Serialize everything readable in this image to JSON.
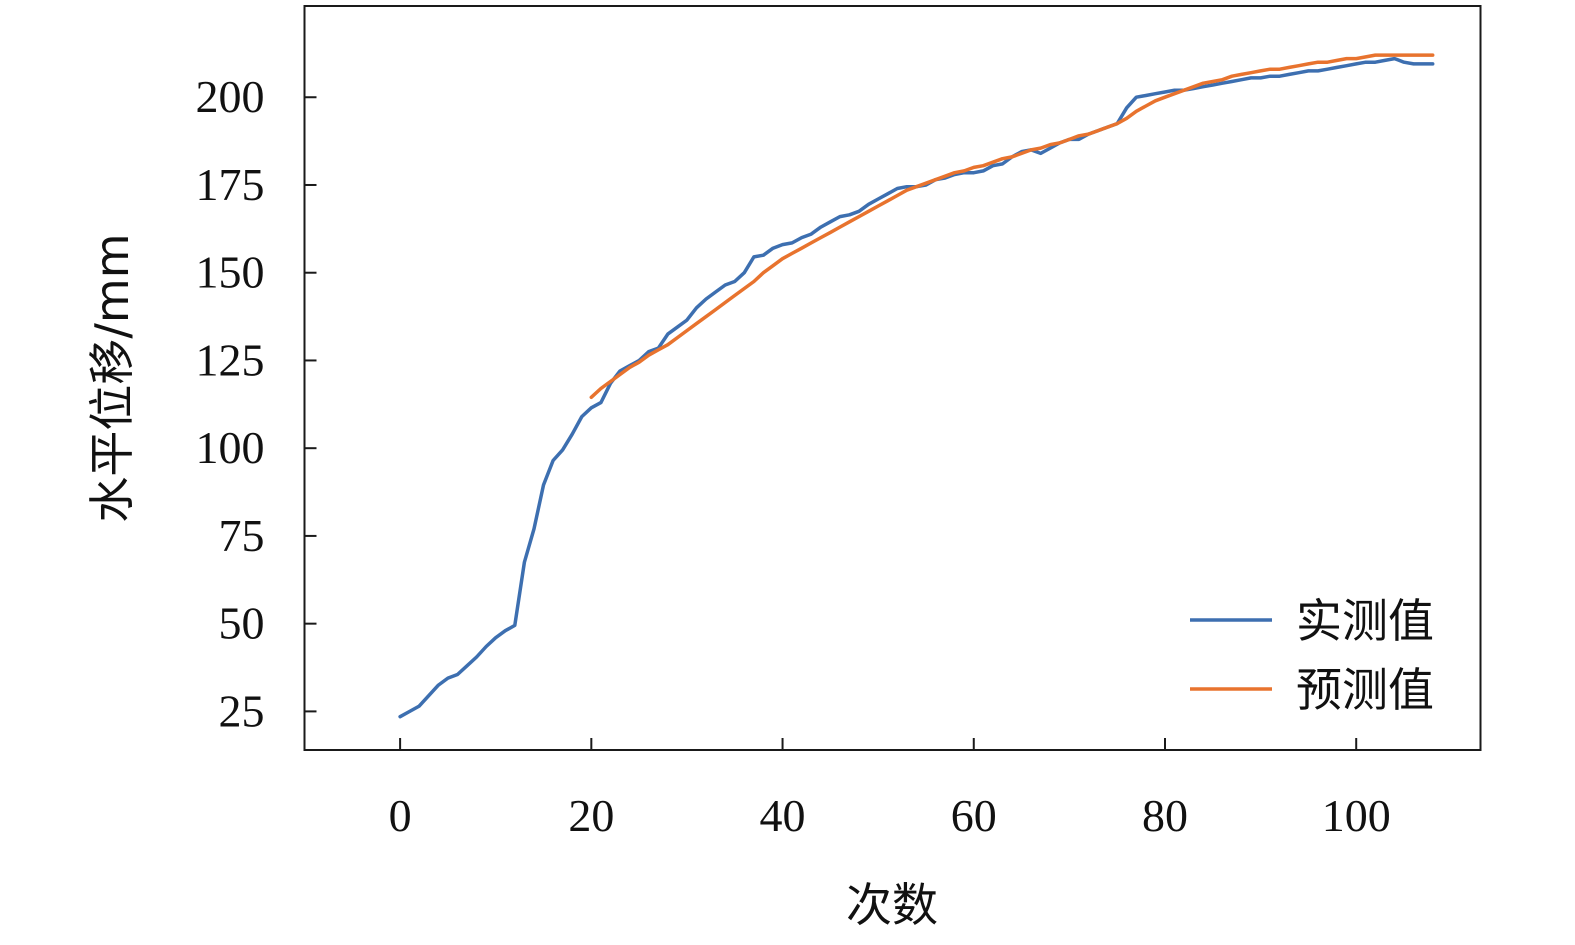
{
  "chart_data": {
    "type": "line",
    "xlabel": "次数",
    "ylabel": "水平位移/mm",
    "xlim": [
      -10,
      113
    ],
    "ylim": [
      14,
      226
    ],
    "xticks": [
      0,
      20,
      40,
      60,
      80,
      100
    ],
    "yticks": [
      25,
      50,
      75,
      100,
      125,
      150,
      175,
      200
    ],
    "grid": false,
    "legend_position": "bottom-right",
    "series": [
      {
        "name": "实测值",
        "color": "#3d6fb0",
        "x": [
          0,
          1,
          2,
          3,
          4,
          5,
          6,
          7,
          8,
          9,
          10,
          11,
          12,
          13,
          14,
          15,
          16,
          17,
          18,
          19,
          20,
          21,
          22,
          23,
          24,
          25,
          26,
          27,
          28,
          29,
          30,
          31,
          32,
          33,
          34,
          35,
          36,
          37,
          38,
          39,
          40,
          41,
          42,
          43,
          44,
          45,
          46,
          47,
          48,
          49,
          50,
          51,
          52,
          53,
          54,
          55,
          56,
          57,
          58,
          59,
          60,
          61,
          62,
          63,
          64,
          65,
          66,
          67,
          68,
          69,
          70,
          71,
          72,
          73,
          74,
          75,
          76,
          77,
          78,
          79,
          80,
          81,
          82,
          83,
          84,
          85,
          86,
          87,
          88,
          89,
          90,
          91,
          92,
          93,
          94,
          95,
          96,
          97,
          98,
          99,
          100,
          101,
          102,
          103,
          104,
          105,
          106,
          107,
          108
        ],
        "y": [
          23.5,
          25,
          26.5,
          29.5,
          32.5,
          34.5,
          35.5,
          38,
          40.5,
          43.5,
          46,
          48,
          49.5,
          67.5,
          77,
          89.5,
          96.5,
          99.5,
          104,
          109,
          111.5,
          113,
          118.5,
          122,
          123.5,
          125,
          127.5,
          128.5,
          132.5,
          134.5,
          136.5,
          140,
          142.5,
          144.5,
          146.5,
          147.5,
          150,
          154.5,
          155,
          157,
          158,
          158.5,
          160,
          161,
          163,
          164.5,
          166,
          166.5,
          167.5,
          169.5,
          171,
          172.5,
          174,
          174.5,
          174.5,
          175,
          176.5,
          177,
          178,
          178.5,
          178.5,
          179,
          180.5,
          181,
          183,
          184.5,
          185,
          184,
          185.5,
          187,
          188,
          188,
          189.5,
          190.5,
          191.5,
          192.5,
          197,
          200,
          200.5,
          201,
          201.5,
          202,
          202,
          202.5,
          203,
          203.5,
          204,
          204.5,
          205,
          205.5,
          205.5,
          206,
          206,
          206.5,
          207,
          207.5,
          207.5,
          208,
          208.5,
          209,
          209.5,
          210,
          210,
          210.5,
          211,
          210,
          209.5,
          209.5,
          209.5
        ]
      },
      {
        "name": "预测值",
        "color": "#e8732e",
        "x": [
          20,
          21,
          22,
          23,
          24,
          25,
          26,
          27,
          28,
          29,
          30,
          31,
          32,
          33,
          34,
          35,
          36,
          37,
          38,
          39,
          40,
          41,
          42,
          43,
          44,
          45,
          46,
          47,
          48,
          49,
          50,
          51,
          52,
          53,
          54,
          55,
          56,
          57,
          58,
          59,
          60,
          61,
          62,
          63,
          64,
          65,
          66,
          67,
          68,
          69,
          70,
          71,
          72,
          73,
          74,
          75,
          76,
          77,
          78,
          79,
          80,
          81,
          82,
          83,
          84,
          85,
          86,
          87,
          88,
          89,
          90,
          91,
          92,
          93,
          94,
          95,
          96,
          97,
          98,
          99,
          100,
          101,
          102,
          103,
          104,
          105,
          106,
          107,
          108
        ],
        "y": [
          114.5,
          117,
          119,
          121,
          123,
          124.5,
          126.5,
          128,
          129.5,
          131.5,
          133.5,
          135.5,
          137.5,
          139.5,
          141.5,
          143.5,
          145.5,
          147.5,
          150,
          152,
          154,
          155.5,
          157,
          158.5,
          160,
          161.5,
          163,
          164.5,
          166,
          167.5,
          169,
          170.5,
          172,
          173.5,
          174.5,
          175.5,
          176.5,
          177.5,
          178.5,
          179,
          180,
          180.5,
          181.5,
          182.5,
          183,
          184,
          185,
          185.5,
          186.5,
          187,
          188,
          189,
          189.5,
          190.5,
          191.5,
          192.5,
          194,
          196,
          197.5,
          199,
          200,
          201,
          202,
          203,
          204,
          204.5,
          205,
          206,
          206.5,
          207,
          207.5,
          208,
          208,
          208.5,
          209,
          209.5,
          210,
          210,
          210.5,
          211,
          211,
          211.5,
          212,
          212,
          212,
          212,
          212,
          212,
          212
        ]
      }
    ]
  }
}
